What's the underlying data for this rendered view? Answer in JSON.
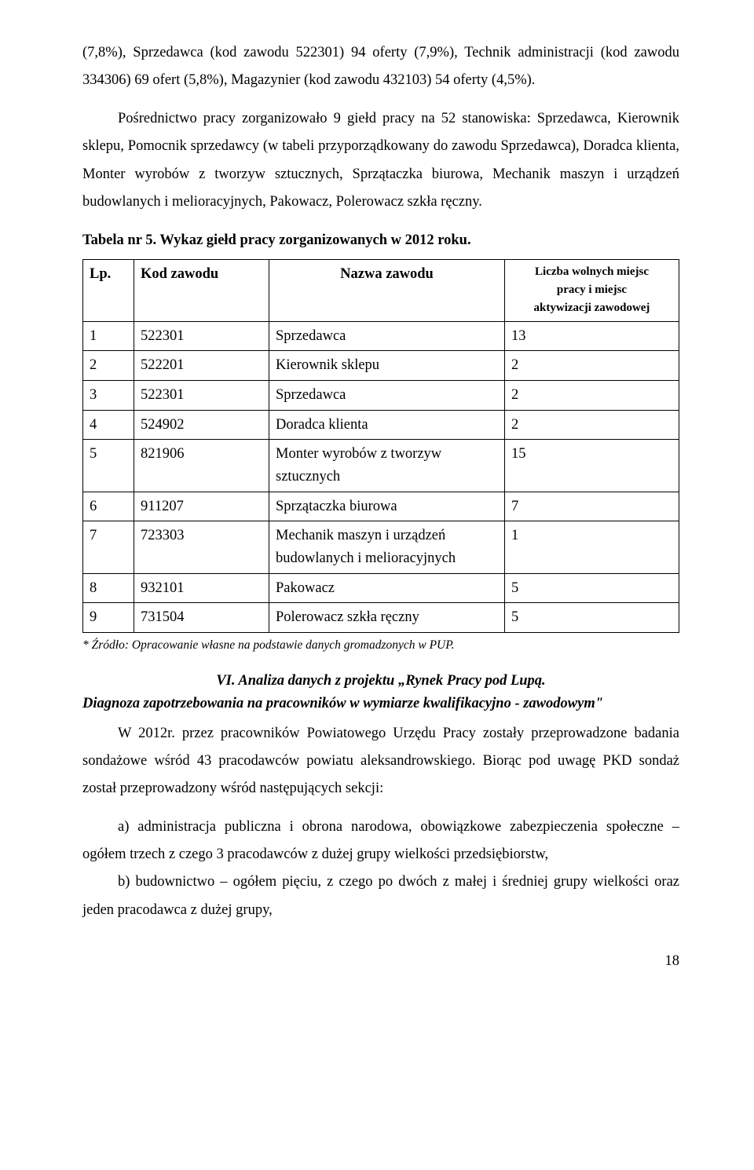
{
  "para1": "(7,8%), Sprzedawca (kod zawodu 522301) 94 oferty (7,9%), Technik administracji (kod zawodu 334306) 69 ofert (5,8%), Magazynier (kod zawodu 432103) 54 oferty (4,5%).",
  "para2": "Pośrednictwo pracy zorganizowało 9 giełd pracy na 52 stanowiska: Sprzedawca, Kierownik sklepu, Pomocnik sprzedawcy (w tabeli przyporządkowany do zawodu Sprzedawca), Doradca klienta, Monter wyrobów z tworzyw sztucznych, Sprzątaczka biurowa, Mechanik maszyn i urządzeń budowlanych i melioracyjnych, Pakowacz, Polerowacz szkła ręczny.",
  "table_title": "Tabela nr 5. Wykaz giełd pracy zorganizowanych w 2012 roku.",
  "table": {
    "headers": {
      "lp": "Lp.",
      "kod": "Kod zawodu",
      "nazwa": "Nazwa zawodu",
      "liczba_l1": "Liczba wolnych miejsc",
      "liczba_l2": "pracy i miejsc",
      "liczba_l3": "aktywizacji zawodowej"
    },
    "rows": [
      {
        "lp": "1",
        "kod": "522301",
        "nazwa": "Sprzedawca",
        "liczba": "13"
      },
      {
        "lp": "2",
        "kod": "522201",
        "nazwa": "Kierownik sklepu",
        "liczba": "2"
      },
      {
        "lp": "3",
        "kod": "522301",
        "nazwa": "Sprzedawca",
        "liczba": "2"
      },
      {
        "lp": "4",
        "kod": "524902",
        "nazwa": "Doradca klienta",
        "liczba": "2"
      },
      {
        "lp": "5",
        "kod": "821906",
        "nazwa": "Monter  wyrobów z tworzyw sztucznych",
        "liczba": "15"
      },
      {
        "lp": "6",
        "kod": "911207",
        "nazwa": "Sprzątaczka biurowa",
        "liczba": "7"
      },
      {
        "lp": "7",
        "kod": "723303",
        "nazwa": "Mechanik maszyn i urządzeń budowlanych i melioracyjnych",
        "liczba": "1"
      },
      {
        "lp": "8",
        "kod": "932101",
        "nazwa": "Pakowacz",
        "liczba": "5"
      },
      {
        "lp": "9",
        "kod": "731504",
        "nazwa": "Polerowacz szkła ręczny",
        "liczba": "5"
      }
    ]
  },
  "footnote": "* Źródło: Opracowanie własne na podstawie danych gromadzonych w PUP.",
  "section_title": "VI. Analiza danych z projektu „Rynek Pracy pod Lupą.",
  "subtitle": "Diagnoza zapotrzebowania na pracowników w wymiarze kwalifikacyjno - zawodowym\"",
  "para3": "W 2012r. przez pracowników Powiatowego Urzędu Pracy zostały przeprowadzone badania sondażowe wśród 43 pracodawców powiatu aleksandrowskiego. Biorąc pod uwagę PKD sondaż został przeprowadzony wśród następujących sekcji:",
  "list_a": "a) administracja publiczna i obrona narodowa, obowiązkowe zabezpieczenia społeczne – ogółem trzech  z czego 3 pracodawców z dużej grupy wielkości przedsiębiorstw,",
  "list_b": "b) budownictwo – ogółem pięciu, z czego po dwóch z małej i średniej grupy wielkości oraz jeden pracodawca z dużej grupy,",
  "page_number": "18"
}
